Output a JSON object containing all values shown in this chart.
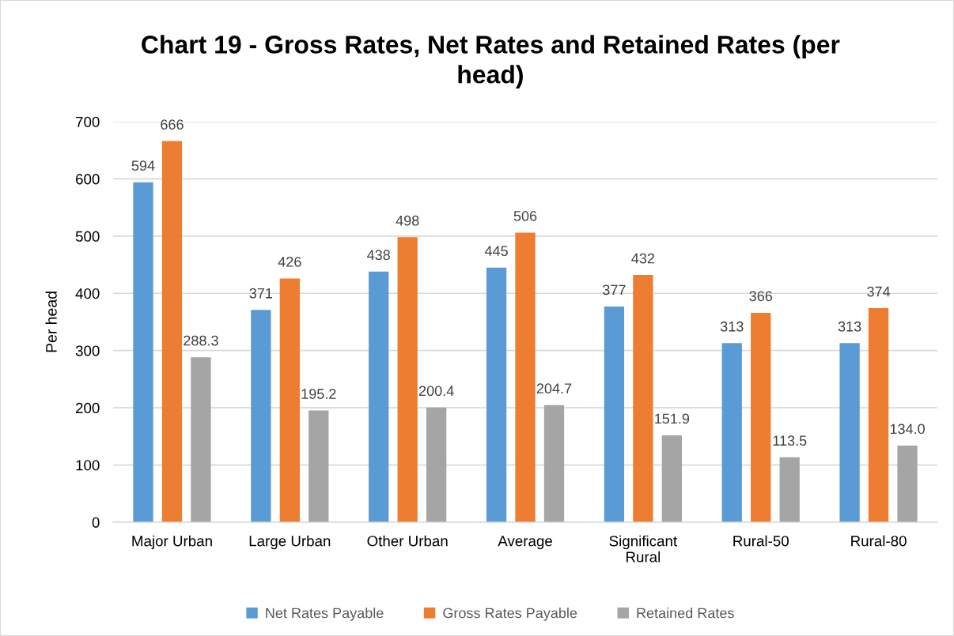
{
  "chart_data": {
    "type": "bar",
    "title": "Chart 19 - Gross Rates, Net Rates and Retained Rates (per\nhead)",
    "ylabel": "Per head",
    "categories": [
      "Major Urban",
      "Large Urban",
      "Other Urban",
      "Average",
      "Significant\nRural",
      "Rural-50",
      "Rural-80"
    ],
    "series": [
      {
        "name": "Net Rates Payable",
        "color": "#5b9bd5",
        "values": [
          594,
          371,
          438,
          445,
          377,
          313,
          313
        ],
        "value_labels": [
          "594",
          "371",
          "438",
          "445",
          "377",
          "313",
          "313"
        ]
      },
      {
        "name": "Gross Rates Payable",
        "color": "#ed7d31",
        "values": [
          666,
          426,
          498,
          506,
          432,
          366,
          374
        ],
        "value_labels": [
          "666",
          "426",
          "498",
          "506",
          "432",
          "366",
          "374"
        ]
      },
      {
        "name": "Retained Rates",
        "color": "#a5a5a5",
        "values": [
          288.3,
          195.2,
          200.4,
          204.7,
          151.9,
          113.5,
          134.0
        ],
        "value_labels": [
          "288.3",
          "195.2",
          "200.4",
          "204.7",
          "151.9",
          "113.5",
          "134.0"
        ]
      }
    ],
    "ylim": [
      0,
      700
    ],
    "yticks": [
      0,
      100,
      200,
      300,
      400,
      500,
      600,
      700
    ],
    "grid": "y",
    "legend": "bottom"
  }
}
